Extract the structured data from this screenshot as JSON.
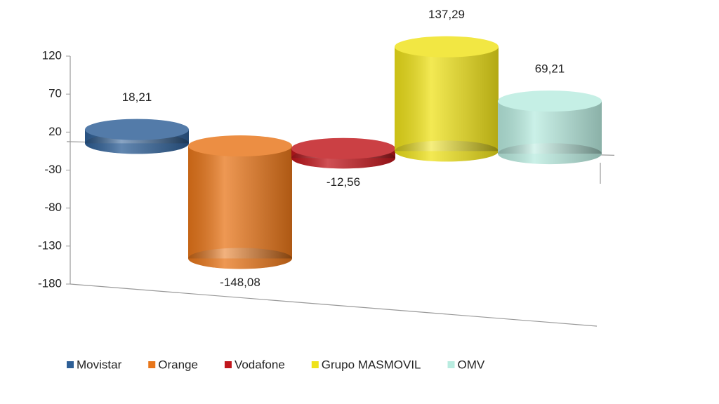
{
  "chart_data": {
    "type": "bar",
    "categories": [
      null
    ],
    "series": [
      {
        "name": "Movistar",
        "color": "#2e5f96",
        "values": [
          18.21
        ],
        "value_labels": [
          "18,21"
        ]
      },
      {
        "name": "Orange",
        "color": "#e8761a",
        "values": [
          -148.08
        ],
        "value_labels": [
          "-148,08"
        ]
      },
      {
        "name": "Vodafone",
        "color": "#c0161c",
        "values": [
          -12.56
        ],
        "value_labels": [
          "-12,56"
        ]
      },
      {
        "name": "Grupo MASMOVIL",
        "color": "#efe21a",
        "values": [
          137.29
        ],
        "value_labels": [
          "137,29"
        ]
      },
      {
        "name": "OMV",
        "color": "#b9ece0",
        "values": [
          69.21
        ],
        "value_labels": [
          "69,21"
        ]
      }
    ],
    "ylim": [
      -180,
      120
    ],
    "yticks": [
      120,
      70,
      20,
      -30,
      -80,
      -130,
      -180
    ],
    "legend": "bottom"
  }
}
